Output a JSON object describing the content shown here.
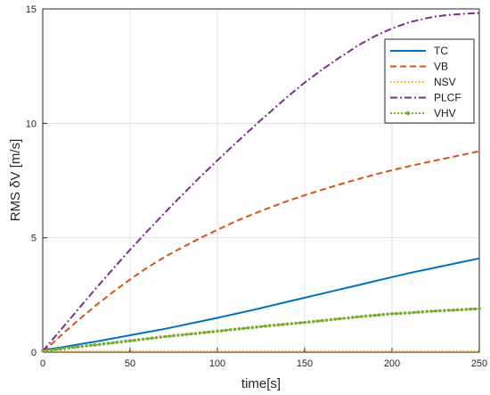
{
  "chart_data": {
    "type": "line",
    "xlabel": "time[s]",
    "ylabel": "RMS δV [m/s]",
    "xlim": [
      0,
      250
    ],
    "ylim": [
      0,
      15
    ],
    "xticks": [
      "0",
      "50",
      "100",
      "150",
      "200",
      "250"
    ],
    "yticks": [
      "0",
      "5",
      "10",
      "15"
    ],
    "grid": true,
    "legend_position": "top-right",
    "x": [
      0,
      5,
      10,
      15,
      20,
      25,
      30,
      40,
      50,
      60,
      70,
      75,
      80,
      90,
      100,
      110,
      120,
      125,
      130,
      140,
      150,
      160,
      170,
      175,
      180,
      190,
      200,
      210,
      220,
      225,
      230,
      240,
      250
    ],
    "series": [
      {
        "name": "TC",
        "color": "#0072BD",
        "style": "solid",
        "values": [
          0.1,
          0.15,
          0.2,
          0.27,
          0.33,
          0.4,
          0.46,
          0.6,
          0.74,
          0.88,
          1.02,
          1.1,
          1.18,
          1.34,
          1.5,
          1.67,
          1.84,
          1.93,
          2.02,
          2.2,
          2.38,
          2.56,
          2.74,
          2.83,
          2.92,
          3.1,
          3.28,
          3.46,
          3.62,
          3.7,
          3.78,
          3.94,
          4.1
        ]
      },
      {
        "name": "VB",
        "color": "#D95319",
        "style": "dashed",
        "values": [
          0.05,
          0.35,
          0.7,
          1.05,
          1.38,
          1.7,
          2.02,
          2.62,
          3.18,
          3.7,
          4.17,
          4.38,
          4.58,
          4.98,
          5.35,
          5.7,
          6.02,
          6.17,
          6.32,
          6.6,
          6.86,
          7.1,
          7.33,
          7.44,
          7.55,
          7.76,
          7.95,
          8.13,
          8.3,
          8.38,
          8.46,
          8.62,
          8.78
        ]
      },
      {
        "name": "NSV",
        "color": "#EDB120",
        "style": "dotted",
        "values": [
          0.05,
          0.05,
          0.05,
          0.05,
          0.05,
          0.05,
          0.05,
          0.05,
          0.05,
          0.05,
          0.05,
          0.05,
          0.05,
          0.05,
          0.05,
          0.05,
          0.05,
          0.05,
          0.05,
          0.05,
          0.05,
          0.05,
          0.05,
          0.05,
          0.05,
          0.05,
          0.05,
          0.05,
          0.05,
          0.05,
          0.05,
          0.05,
          0.05
        ]
      },
      {
        "name": "PLCF",
        "color": "#7E2F8E",
        "style": "dashdot",
        "values": [
          0.05,
          0.5,
          0.95,
          1.4,
          1.85,
          2.3,
          2.75,
          3.62,
          4.48,
          5.3,
          6.1,
          6.5,
          6.88,
          7.65,
          8.38,
          9.1,
          9.8,
          10.15,
          10.48,
          11.15,
          11.78,
          12.35,
          12.88,
          13.12,
          13.38,
          13.8,
          14.15,
          14.42,
          14.6,
          14.67,
          14.72,
          14.78,
          14.82
        ]
      },
      {
        "name": "VHV",
        "color": "#77AC30",
        "style": "dotted-marker",
        "values": [
          0.05,
          0.1,
          0.14,
          0.19,
          0.23,
          0.28,
          0.32,
          0.41,
          0.5,
          0.59,
          0.68,
          0.72,
          0.76,
          0.84,
          0.92,
          1.0,
          1.08,
          1.12,
          1.16,
          1.23,
          1.3,
          1.38,
          1.46,
          1.5,
          1.54,
          1.61,
          1.68,
          1.72,
          1.78,
          1.8,
          1.82,
          1.86,
          1.9
        ]
      }
    ]
  }
}
